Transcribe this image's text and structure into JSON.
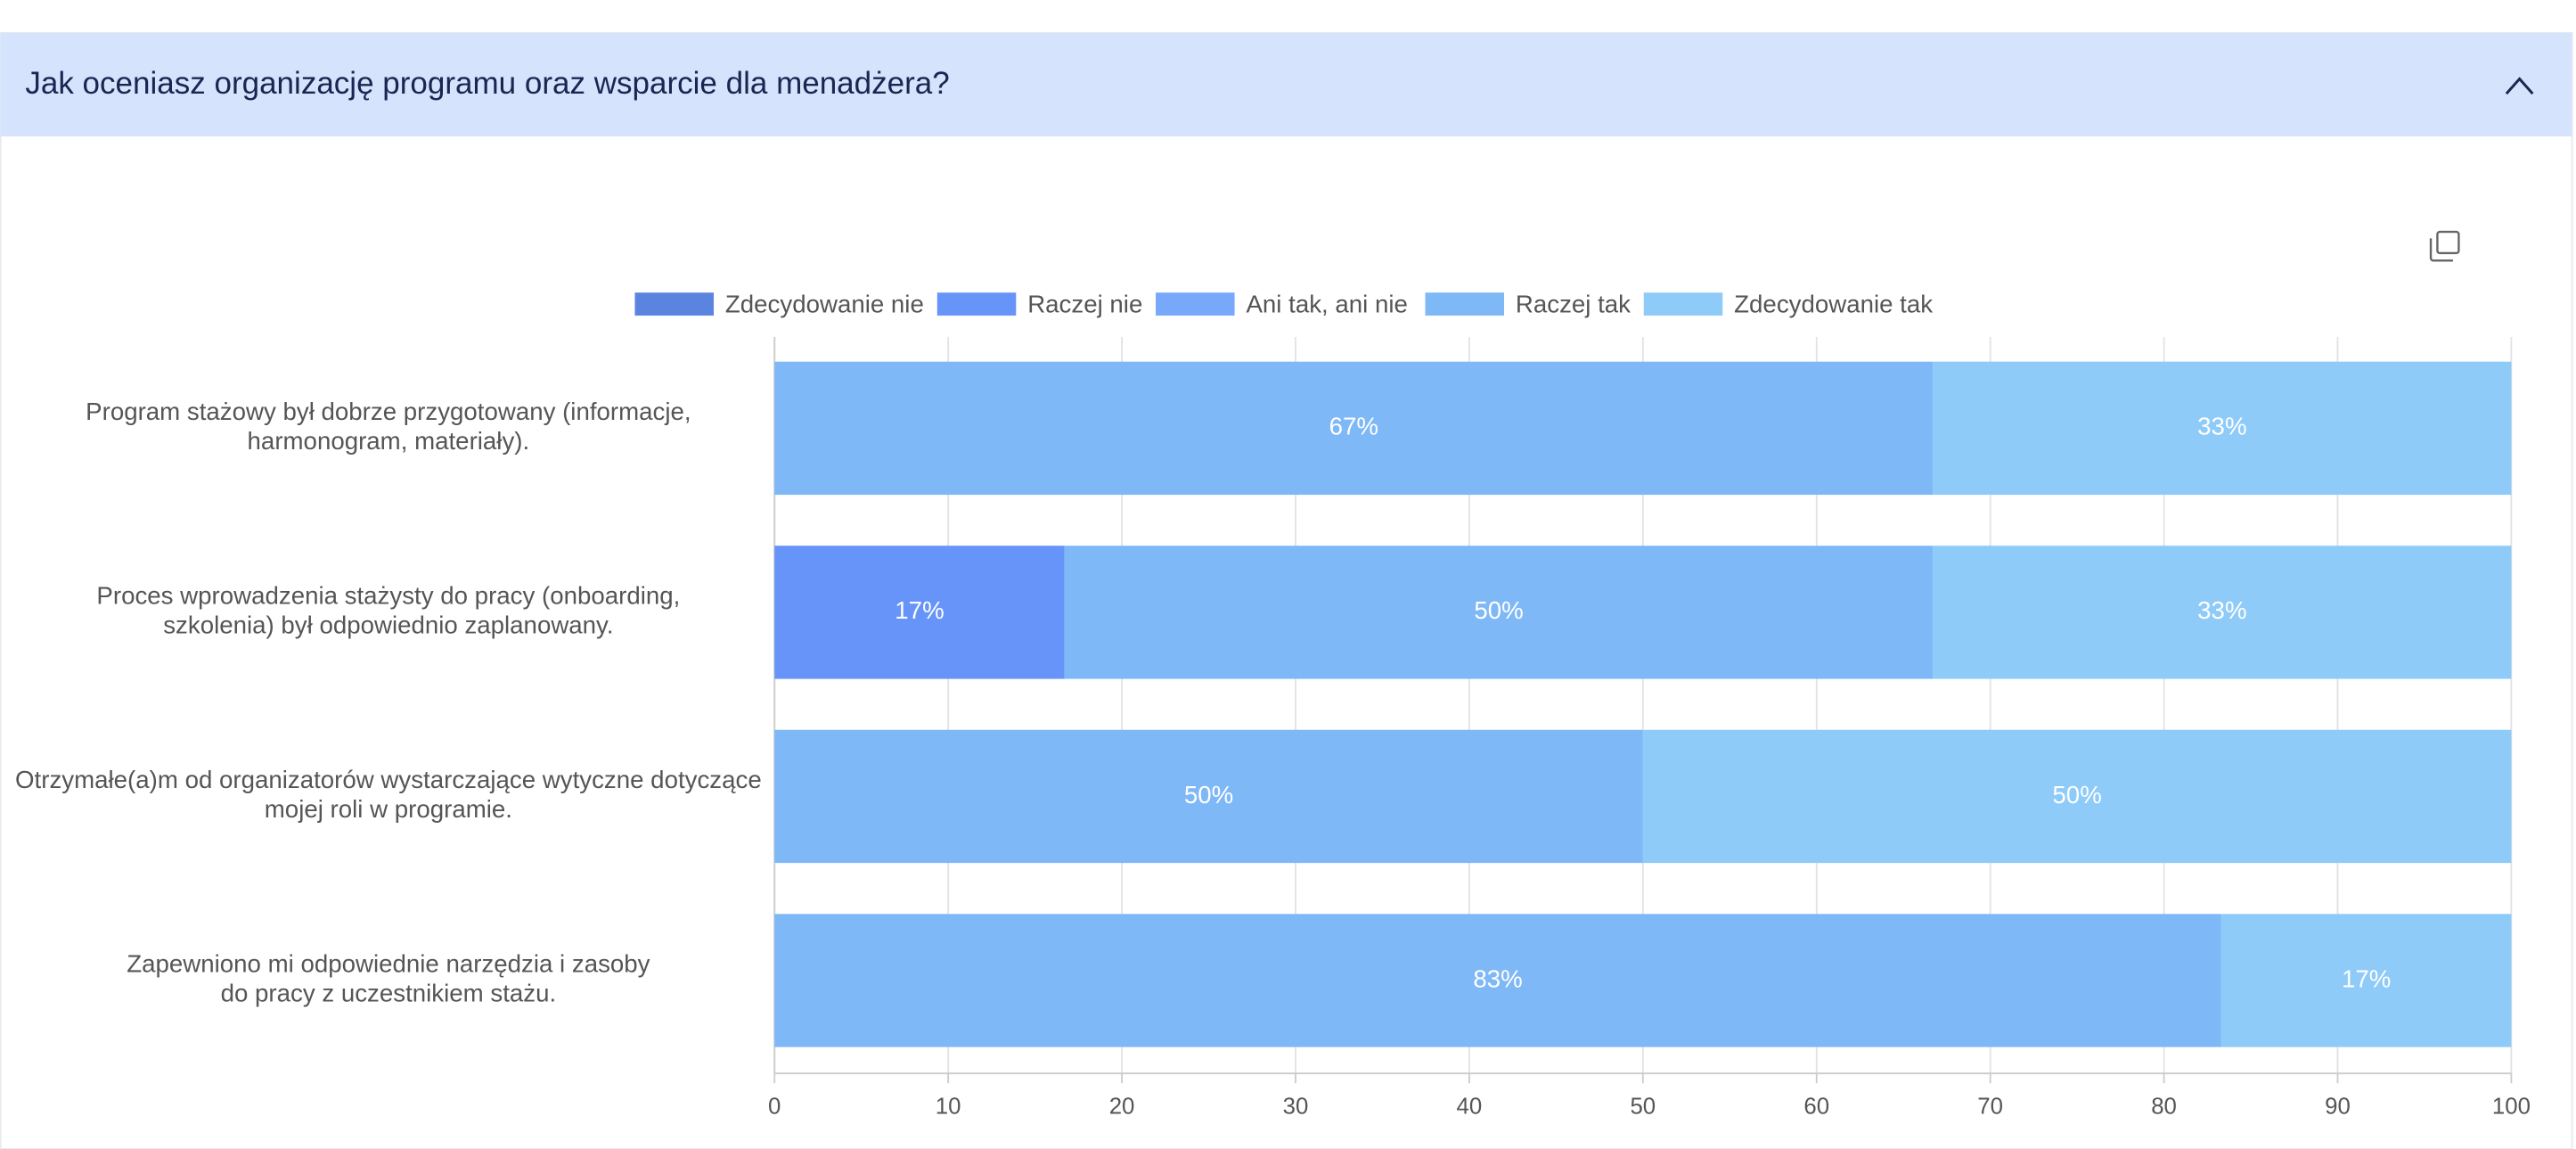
{
  "header": {
    "title": "Jak oceniasz organizację programu oraz wsparcie dla menadżera?"
  },
  "chart_data": {
    "type": "stacked-bar-horizontal",
    "categories": [
      "Program stażowy był dobrze przygotowany (informacje,\nharmonogram, materiały).",
      "Proces wprowadzenia stażysty do pracy (onboarding,\nszkolenia) był odpowiednio zaplanowany.",
      "Otrzymałe(a)m od organizatorów wystarczające wytyczne dotyczące\nmojej roli w programie.",
      "Zapewniono mi odpowiednie narzędzia i zasoby\ndo pracy z uczestnikiem stażu."
    ],
    "series": [
      {
        "name": "Zdecydowanie nie",
        "color": "#5b84e0",
        "values": [
          null,
          null,
          null,
          null
        ]
      },
      {
        "name": "Raczej nie",
        "color": "#6694f8",
        "values": [
          null,
          16.7,
          null,
          null
        ],
        "value_labels": [
          null,
          "17%",
          null,
          null
        ]
      },
      {
        "name": "Ani tak, ani nie",
        "color": "#77a8fa",
        "values": [
          null,
          null,
          null,
          null
        ]
      },
      {
        "name": "Raczej tak",
        "color": "#7fb8f7",
        "values": [
          66.7,
          50,
          50,
          83.3
        ],
        "value_labels": [
          "67%",
          "50%",
          "50%",
          "83%"
        ]
      },
      {
        "name": "Zdecydowanie tak",
        "color": "#8ecbf9",
        "values": [
          33.3,
          33.3,
          50,
          16.7
        ],
        "value_labels": [
          "33%",
          "33%",
          "50%",
          "17%"
        ]
      }
    ],
    "xlim": [
      0,
      100
    ],
    "xticks": [
      0,
      10,
      20,
      30,
      40,
      50,
      60,
      70,
      80,
      90,
      100
    ],
    "grid": true,
    "legend": "top"
  }
}
